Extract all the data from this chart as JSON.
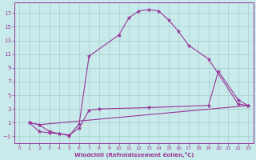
{
  "background_color": "#c8eaea",
  "grid_color": "#a0cccc",
  "line_color": "#993399",
  "marker": "*",
  "xlabel": "Windchill (Refroidissement éolien,°C)",
  "xlim": [
    -0.5,
    23.5
  ],
  "ylim": [
    -2.0,
    18.5
  ],
  "xticks": [
    0,
    1,
    2,
    3,
    4,
    5,
    6,
    7,
    8,
    9,
    10,
    11,
    12,
    13,
    14,
    15,
    16,
    17,
    18,
    19,
    20,
    21,
    22,
    23
  ],
  "yticks": [
    -1,
    1,
    3,
    5,
    7,
    9,
    11,
    13,
    15,
    17
  ],
  "series": [
    {
      "x": [
        1,
        2,
        3,
        4,
        5,
        6,
        7,
        10,
        11,
        12,
        13,
        14,
        15,
        16,
        17,
        19,
        22,
        23
      ],
      "y": [
        1,
        0.7,
        -0.3,
        -0.6,
        -0.9,
        0.8,
        10.7,
        13.8,
        16.3,
        17.3,
        17.5,
        17.3,
        16.0,
        14.3,
        12.3,
        10.3,
        3.7,
        3.5
      ]
    },
    {
      "x": [
        1,
        2,
        3,
        4,
        5,
        6,
        7,
        8,
        13,
        19,
        20,
        22,
        23
      ],
      "y": [
        1,
        -0.3,
        -0.5,
        -0.6,
        -0.8,
        0.2,
        2.8,
        3.0,
        3.2,
        3.5,
        8.5,
        4.3,
        3.5
      ]
    },
    {
      "x": [
        1,
        2,
        23
      ],
      "y": [
        1,
        0.7,
        3.5
      ]
    }
  ]
}
